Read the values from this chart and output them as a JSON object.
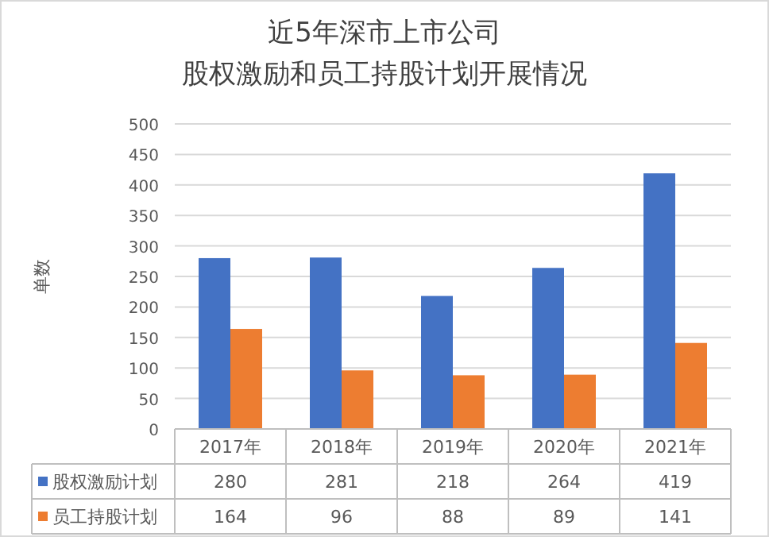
{
  "chart_data": {
    "type": "bar",
    "title": "近5年深市上市公司",
    "subtitle": "股权激励和员工持股计划开展情况",
    "ylabel": "单数",
    "categories": [
      "2017年",
      "2018年",
      "2019年",
      "2020年",
      "2021年"
    ],
    "series": [
      {
        "name": "股权激励计划",
        "color": "#4472c4",
        "values": [
          280,
          281,
          218,
          264,
          419
        ]
      },
      {
        "name": "员工持股计划",
        "color": "#ed7d31",
        "values": [
          164,
          96,
          88,
          89,
          141
        ]
      }
    ],
    "ylim": [
      0,
      500
    ],
    "yticks": [
      0,
      50,
      100,
      150,
      200,
      250,
      300,
      350,
      400,
      450,
      500
    ],
    "grid": "y",
    "legend": "bottom",
    "data_labels": true
  }
}
